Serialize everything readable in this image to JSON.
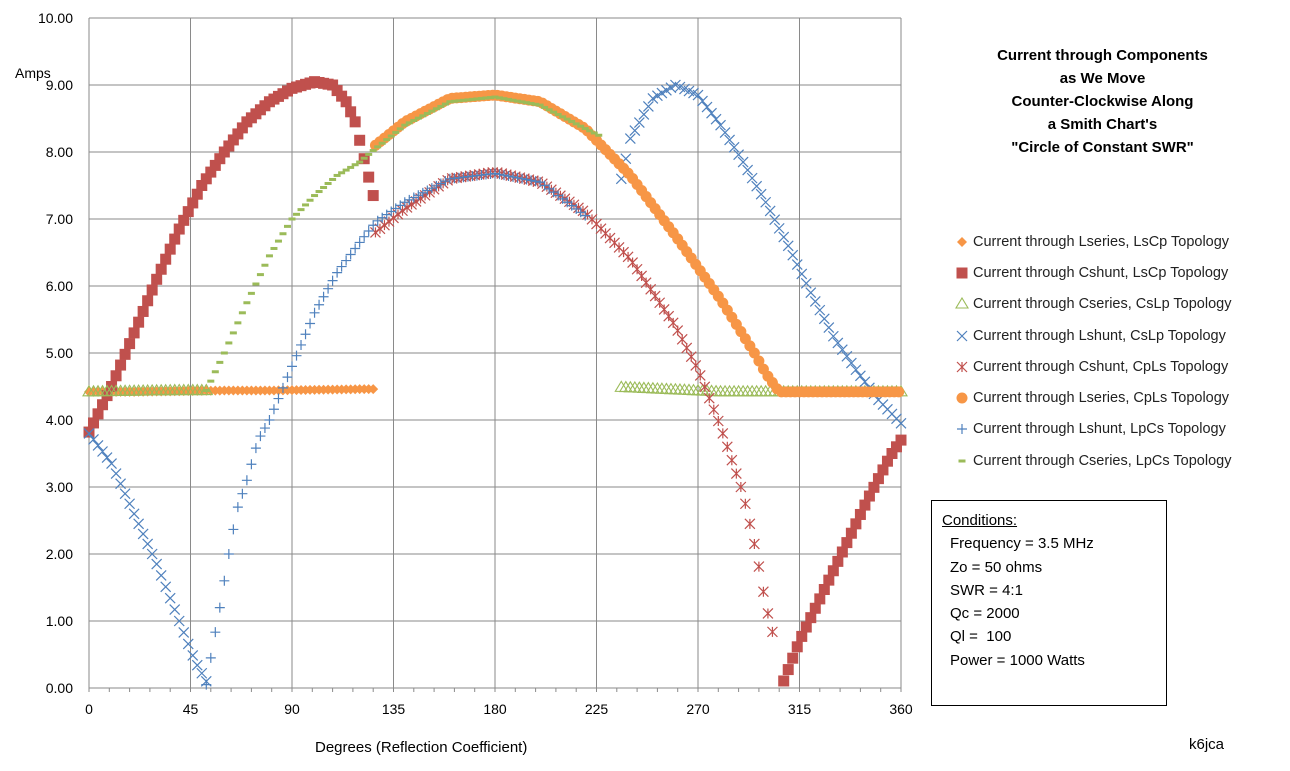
{
  "chart_data": {
    "type": "scatter",
    "title_lines": [
      "Current through Components",
      "as We Move",
      "Counter-Clockwise Along",
      "a Smith Chart's",
      "\"Circle of Constant SWR\""
    ],
    "xlabel": "Degrees (Reflection Coefficient)",
    "ylabel": "Amps",
    "xlim": [
      0,
      360
    ],
    "ylim": [
      0,
      10
    ],
    "xticks": [
      0,
      45,
      90,
      135,
      180,
      225,
      270,
      315,
      360
    ],
    "xtick_labels": [
      "0",
      "45",
      "90",
      "135",
      "180",
      "225",
      "270",
      "315",
      "360"
    ],
    "yticks": [
      0,
      1,
      2,
      3,
      4,
      5,
      6,
      7,
      8,
      9,
      10
    ],
    "ytick_labels": [
      "0.00",
      "1.00",
      "2.00",
      "3.00",
      "4.00",
      "5.00",
      "6.00",
      "7.00",
      "8.00",
      "9.00",
      "10.00"
    ],
    "grid": true,
    "series": [
      {
        "name": "Current through Lseries, LsCp Topology",
        "marker": "diamond",
        "color": "#F79646",
        "points": [
          [
            0,
            4.42
          ],
          [
            20,
            4.42
          ],
          [
            40,
            4.43
          ],
          [
            60,
            4.44
          ],
          [
            80,
            4.44
          ],
          [
            100,
            4.45
          ],
          [
            120,
            4.46
          ],
          [
            126,
            4.46
          ]
        ]
      },
      {
        "name": "Current through Cshunt, LsCp Topology",
        "marker": "square",
        "color": "#C0504D",
        "points": [
          [
            0,
            3.82
          ],
          [
            10,
            4.5
          ],
          [
            20,
            5.3
          ],
          [
            30,
            6.1
          ],
          [
            40,
            6.85
          ],
          [
            50,
            7.5
          ],
          [
            60,
            8.0
          ],
          [
            70,
            8.45
          ],
          [
            80,
            8.75
          ],
          [
            90,
            8.95
          ],
          [
            100,
            9.05
          ],
          [
            108,
            9.0
          ],
          [
            114,
            8.75
          ],
          [
            118,
            8.45
          ],
          [
            122,
            7.9
          ],
          [
            126,
            7.35
          ],
          [
            307,
            0.02
          ],
          [
            315,
            0.7
          ],
          [
            325,
            1.4
          ],
          [
            335,
            2.1
          ],
          [
            345,
            2.8
          ],
          [
            355,
            3.45
          ],
          [
            360,
            3.7
          ]
        ]
      },
      {
        "name": "Current through Cseries, CsLp Topology",
        "marker": "triangle",
        "color": "#9BBB59",
        "points": [
          [
            0,
            4.42
          ],
          [
            20,
            4.43
          ],
          [
            40,
            4.44
          ],
          [
            52,
            4.44
          ],
          [
            234,
            4.49
          ],
          [
            260,
            4.45
          ],
          [
            280,
            4.42
          ],
          [
            300,
            4.42
          ],
          [
            320,
            4.42
          ],
          [
            340,
            4.42
          ],
          [
            360,
            4.42
          ]
        ]
      },
      {
        "name": "Current through Lshunt, CsLp Topology",
        "marker": "x",
        "color": "#4F81BD",
        "points": [
          [
            0,
            3.8
          ],
          [
            10,
            3.35
          ],
          [
            20,
            2.6
          ],
          [
            30,
            1.85
          ],
          [
            40,
            1.0
          ],
          [
            47,
            0.4
          ],
          [
            52,
            0.1
          ],
          [
            234,
            7.3
          ],
          [
            240,
            8.2
          ],
          [
            250,
            8.8
          ],
          [
            260,
            9.0
          ],
          [
            270,
            8.85
          ],
          [
            280,
            8.4
          ],
          [
            290,
            7.85
          ],
          [
            300,
            7.25
          ],
          [
            310,
            6.6
          ],
          [
            320,
            5.9
          ],
          [
            330,
            5.25
          ],
          [
            340,
            4.75
          ],
          [
            350,
            4.3
          ],
          [
            360,
            3.95
          ]
        ]
      },
      {
        "name": "Current through Cshunt, CpLs Topology",
        "marker": "star",
        "color": "#C0504D",
        "points": [
          [
            127,
            6.8
          ],
          [
            140,
            7.15
          ],
          [
            160,
            7.6
          ],
          [
            180,
            7.7
          ],
          [
            200,
            7.55
          ],
          [
            220,
            7.1
          ],
          [
            240,
            6.4
          ],
          [
            260,
            5.4
          ],
          [
            270,
            4.75
          ],
          [
            280,
            3.9
          ],
          [
            290,
            2.9
          ],
          [
            296,
            2.0
          ],
          [
            300,
            1.25
          ],
          [
            304,
            0.7
          ]
        ]
      },
      {
        "name": "Current through Lseries, CpLs Topology",
        "marker": "circle",
        "color": "#F79646",
        "points": [
          [
            127,
            8.1
          ],
          [
            140,
            8.45
          ],
          [
            160,
            8.8
          ],
          [
            180,
            8.85
          ],
          [
            200,
            8.75
          ],
          [
            220,
            8.35
          ],
          [
            240,
            7.65
          ],
          [
            260,
            6.75
          ],
          [
            280,
            5.8
          ],
          [
            295,
            5.0
          ],
          [
            300,
            4.7
          ],
          [
            306,
            4.42
          ],
          [
            320,
            4.42
          ],
          [
            340,
            4.42
          ],
          [
            360,
            4.42
          ]
        ]
      },
      {
        "name": "Current through Lshunt, LpCs Topology",
        "marker": "plus",
        "color": "#4F81BD",
        "points": [
          [
            52,
            0.05
          ],
          [
            55,
            0.65
          ],
          [
            58,
            1.2
          ],
          [
            60,
            1.6
          ],
          [
            63,
            2.2
          ],
          [
            66,
            2.7
          ],
          [
            70,
            3.1
          ],
          [
            75,
            3.7
          ],
          [
            80,
            4.0
          ],
          [
            85,
            4.4
          ],
          [
            90,
            4.8
          ],
          [
            100,
            5.6
          ],
          [
            110,
            6.2
          ],
          [
            120,
            6.65
          ],
          [
            127,
            6.95
          ],
          [
            140,
            7.25
          ],
          [
            160,
            7.6
          ],
          [
            180,
            7.68
          ],
          [
            200,
            7.55
          ],
          [
            220,
            7.05
          ]
        ]
      },
      {
        "name": "Current  through Cseries, LpCs Topology",
        "marker": "dash",
        "color": "#9BBB59",
        "points": [
          [
            52,
            4.44
          ],
          [
            60,
            5.0
          ],
          [
            70,
            5.75
          ],
          [
            80,
            6.45
          ],
          [
            90,
            7.0
          ],
          [
            100,
            7.35
          ],
          [
            110,
            7.65
          ],
          [
            120,
            7.85
          ],
          [
            127,
            8.05
          ],
          [
            140,
            8.4
          ],
          [
            160,
            8.75
          ],
          [
            180,
            8.82
          ],
          [
            200,
            8.7
          ],
          [
            220,
            8.35
          ],
          [
            226,
            8.25
          ]
        ]
      }
    ]
  },
  "conditions": {
    "heading": "Conditions:",
    "lines": [
      "Frequency = 3.5 MHz",
      "Zo = 50 ohms",
      "SWR = 4:1",
      "Qc = 2000",
      "Ql =  100",
      "Power = 1000 Watts"
    ]
  },
  "credit": "k6jca"
}
